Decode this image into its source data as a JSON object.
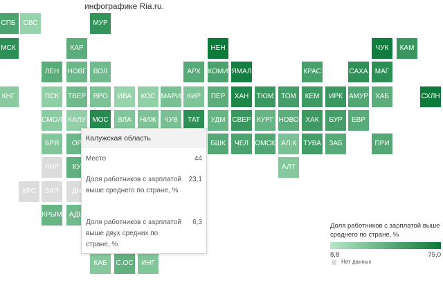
{
  "header": {
    "text": "инфографике Ria.ru."
  },
  "tiles": [
    {
      "code": "СПБ",
      "value": 49.5
    },
    {
      "code": "СВС",
      "value": 21.2
    },
    {
      "code": "МУР",
      "value": 60.0
    },
    {
      "code": "МСК",
      "value": 62.5
    },
    {
      "code": "КАР",
      "value": 44.0
    },
    {
      "code": "НЕН",
      "value": 75.0
    },
    {
      "code": "ЧУК",
      "value": 74.0
    },
    {
      "code": "КАМ",
      "value": 58.0
    },
    {
      "code": "ЛЕН",
      "value": 44.5
    },
    {
      "code": "НОВГ",
      "value": 38.0
    },
    {
      "code": "ВОЛ",
      "value": 36.0
    },
    {
      "code": "АРХ",
      "value": 46.0
    },
    {
      "code": "КОМИ",
      "value": 50.5
    },
    {
      "code": "ЯМАЛ",
      "value": 72.0
    },
    {
      "code": "КРАС",
      "value": 52.0
    },
    {
      "code": "САХА",
      "value": 61.5
    },
    {
      "code": "МАГ",
      "value": 62.0
    },
    {
      "code": "КНГ",
      "value": 26.5
    },
    {
      "code": "ПСК",
      "value": 24.0
    },
    {
      "code": "ТВЕР",
      "value": 37.0
    },
    {
      "code": "ЯРО",
      "value": 31.5
    },
    {
      "code": "ИВА",
      "value": 20.8
    },
    {
      "code": "КОС",
      "value": 23.6
    },
    {
      "code": "МАРИ",
      "value": 33.2
    },
    {
      "code": "КИР",
      "value": 30.5
    },
    {
      "code": "ПЕР",
      "value": 44.0
    },
    {
      "code": "ХАН",
      "value": 68.0
    },
    {
      "code": "ТЮМ",
      "value": 57.0
    },
    {
      "code": "ТОМ",
      "value": 53.0
    },
    {
      "code": "КЕМ",
      "value": 56.0
    },
    {
      "code": "ИРК",
      "value": 57.5
    },
    {
      "code": "АМУР",
      "value": 48.0
    },
    {
      "code": "ХАБ",
      "value": 44.0
    },
    {
      "code": "СХЛН",
      "value": 75.0
    },
    {
      "code": "СМОЛ",
      "value": 26.1
    },
    {
      "code": "КАЛУ",
      "value": 23.1
    },
    {
      "code": "МОС",
      "value": 65.0
    },
    {
      "code": "ВЛА",
      "value": 29.0
    },
    {
      "code": "НИЖ",
      "value": 31.0
    },
    {
      "code": "ЧУВ",
      "value": 33.0
    },
    {
      "code": "ТАТ",
      "value": 62.0
    },
    {
      "code": "УДМ",
      "value": 40.0
    },
    {
      "code": "СВЕР",
      "value": 58.0
    },
    {
      "code": "КУРГ",
      "value": 40.5
    },
    {
      "code": "НОВО",
      "value": 44.0
    },
    {
      "code": "ХАК",
      "value": 56.5
    },
    {
      "code": "БУР",
      "value": 53.0
    },
    {
      "code": "ЕВР",
      "value": 45.0
    },
    {
      "code": "БРЯ",
      "value": 29.0
    },
    {
      "code": "ОР",
      "value": 38.0
    },
    {
      "code": "БШК",
      "value": 47.0
    },
    {
      "code": "ЧЕЛ",
      "value": 50.0
    },
    {
      "code": "ОМСК",
      "value": 48.5
    },
    {
      "code": "АЛ.К",
      "value": 32.0
    },
    {
      "code": "ТУВА",
      "value": 54.0
    },
    {
      "code": "ЗАБ",
      "value": 46.0
    },
    {
      "code": "ПРИ",
      "value": 47.0
    },
    {
      "code": "ЛНР",
      "value": null
    },
    {
      "code": "КУ",
      "value": 42.0
    },
    {
      "code": "АЛТ",
      "value": 28.0
    },
    {
      "code": "ХРС",
      "value": null
    },
    {
      "code": "ЗАП",
      "value": null
    },
    {
      "code": "ДН",
      "value": null
    },
    {
      "code": "КРЫМ",
      "value": 40.0
    },
    {
      "code": "АДЫ",
      "value": 36.0
    },
    {
      "code": "КАБ",
      "value": 28.0
    },
    {
      "code": "С.ОС",
      "value": 42.0
    },
    {
      "code": "ИНГ",
      "value": 29.5
    }
  ],
  "tooltip": {
    "title": "Калужская область",
    "rows": [
      {
        "label": "Место",
        "value": "44"
      },
      {
        "label": "Доля работников с зарплатой выше среднего по стране, %",
        "value": "23,1"
      },
      {
        "label": "Доля работников с зарплатой выше двух средних по стране, %",
        "value": "6,3"
      }
    ]
  },
  "legend": {
    "title": "Доля работников с зарплатой выше среднего по стране, %",
    "min": "8,8",
    "max": "75,0",
    "nodata_label": "Нет данных",
    "colors": {
      "low": "#b7e7c6",
      "high": "#0d7a3b",
      "nodata": "#dcdcdc"
    }
  }
}
